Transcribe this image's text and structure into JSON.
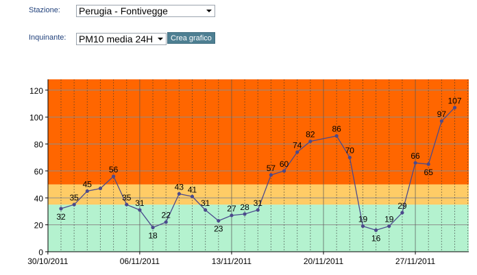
{
  "form": {
    "station_label": "Stazione:",
    "station_value": "Perugia - Fontivegge",
    "pollutant_label": "Inquinante:",
    "pollutant_value": "PM10 media 24H",
    "create_button": "Crea grafico"
  },
  "chart_data": {
    "type": "line",
    "title": "",
    "xlabel": "",
    "ylabel": "",
    "ylim": [
      0,
      128
    ],
    "y_ticks": [
      "0",
      "20",
      "40",
      "60",
      "80",
      "100",
      "120"
    ],
    "x_tick_labels": [
      "30/10/2011",
      "06/11/2011",
      "13/11/2011",
      "20/11/2011",
      "27/11/2011"
    ],
    "bands": [
      {
        "from": 0,
        "to": 35,
        "color": "#b4f2cf"
      },
      {
        "from": 35,
        "to": 50,
        "color": "#ffcc66"
      },
      {
        "from": 50,
        "to": 128,
        "color": "#ff6600"
      }
    ],
    "line_color": "#4b4a8c",
    "series": [
      {
        "x": [
          "31/10/2011",
          "01/11/2011",
          "02/11/2011",
          "03/11/2011",
          "04/11/2011",
          "05/11/2011",
          "06/11/2011",
          "07/11/2011",
          "08/11/2011",
          "09/11/2011",
          "10/11/2011",
          "11/11/2011",
          "12/11/2011",
          "13/11/2011",
          "14/11/2011",
          "15/11/2011",
          "16/11/2011",
          "17/11/2011",
          "18/11/2011",
          "19/11/2011",
          "21/11/2011",
          "22/11/2011",
          "23/11/2011",
          "24/11/2011",
          "25/11/2011",
          "26/11/2011",
          "27/11/2011",
          "28/11/2011",
          "29/11/2011",
          "30/11/2011"
        ],
        "values": [
          32,
          35,
          45,
          47,
          56,
          35,
          31,
          18,
          22,
          43,
          41,
          31,
          23,
          27,
          28,
          31,
          57,
          60,
          74,
          82,
          86,
          70,
          19,
          16,
          19,
          29,
          66,
          65,
          97,
          107
        ],
        "labels": [
          "32",
          "35",
          "45",
          "",
          "56",
          "35",
          "31",
          "18",
          "22",
          "43",
          "41",
          "31",
          "23",
          "27",
          "28",
          "31",
          "57",
          "60",
          "74",
          "82",
          "86",
          "70",
          "19",
          "16",
          "19",
          "29",
          "66",
          "65",
          "97",
          "107"
        ]
      }
    ]
  }
}
